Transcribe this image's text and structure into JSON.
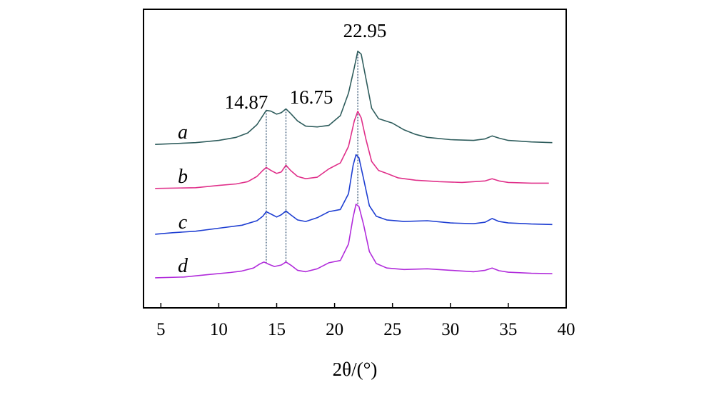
{
  "chart_data": {
    "type": "line",
    "title": "",
    "xlabel": "2θ/(°)",
    "ylabel": "",
    "xlim": [
      3.5,
      40
    ],
    "xticks": [
      5,
      10,
      15,
      20,
      25,
      30,
      35,
      40
    ],
    "grid": false,
    "legend": "none",
    "y_axis_ticks": false,
    "peak_annotations": [
      {
        "label": "14.87",
        "x": 14.87
      },
      {
        "label": "16.75",
        "x": 16.75
      },
      {
        "label": "22.95",
        "x": 22.95
      }
    ],
    "series": [
      {
        "name": "a",
        "color": "#2f5d5d",
        "offset": 3,
        "points": [
          [
            4.5,
            0.18
          ],
          [
            8,
            0.3
          ],
          [
            10,
            0.45
          ],
          [
            11.5,
            0.65
          ],
          [
            12.5,
            0.95
          ],
          [
            13.3,
            1.5
          ],
          [
            13.8,
            2.1
          ],
          [
            14.1,
            2.45
          ],
          [
            14.5,
            2.4
          ],
          [
            15,
            2.2
          ],
          [
            15.4,
            2.3
          ],
          [
            15.8,
            2.55
          ],
          [
            16.2,
            2.25
          ],
          [
            16.8,
            1.75
          ],
          [
            17.5,
            1.4
          ],
          [
            18.5,
            1.35
          ],
          [
            19.5,
            1.45
          ],
          [
            20.5,
            2.1
          ],
          [
            21.2,
            3.6
          ],
          [
            21.7,
            5.3
          ],
          [
            22.0,
            6.4
          ],
          [
            22.3,
            6.2
          ],
          [
            22.7,
            4.6
          ],
          [
            23.2,
            2.6
          ],
          [
            23.8,
            1.9
          ],
          [
            25,
            1.6
          ],
          [
            26,
            1.15
          ],
          [
            27,
            0.85
          ],
          [
            28,
            0.65
          ],
          [
            30,
            0.5
          ],
          [
            32,
            0.45
          ],
          [
            33,
            0.55
          ],
          [
            33.6,
            0.75
          ],
          [
            34.2,
            0.6
          ],
          [
            35,
            0.45
          ],
          [
            37,
            0.35
          ],
          [
            38.8,
            0.3
          ]
        ]
      },
      {
        "name": "b",
        "color": "#e0308a",
        "offset": 2,
        "points": [
          [
            4.5,
            0.2
          ],
          [
            8,
            0.25
          ],
          [
            10,
            0.4
          ],
          [
            11.5,
            0.5
          ],
          [
            12.5,
            0.65
          ],
          [
            13.3,
            1.0
          ],
          [
            13.8,
            1.4
          ],
          [
            14.1,
            1.6
          ],
          [
            14.5,
            1.4
          ],
          [
            15,
            1.2
          ],
          [
            15.4,
            1.3
          ],
          [
            15.8,
            1.75
          ],
          [
            16.2,
            1.4
          ],
          [
            16.8,
            1.0
          ],
          [
            17.5,
            0.85
          ],
          [
            18.5,
            0.95
          ],
          [
            19.5,
            1.5
          ],
          [
            20.5,
            1.9
          ],
          [
            21.2,
            3.0
          ],
          [
            21.7,
            4.7
          ],
          [
            22.0,
            5.35
          ],
          [
            22.3,
            4.9
          ],
          [
            22.7,
            3.5
          ],
          [
            23.2,
            2.0
          ],
          [
            23.8,
            1.4
          ],
          [
            24.5,
            1.2
          ],
          [
            25.5,
            0.9
          ],
          [
            27,
            0.75
          ],
          [
            29,
            0.65
          ],
          [
            31,
            0.6
          ],
          [
            33,
            0.7
          ],
          [
            33.6,
            0.85
          ],
          [
            34.2,
            0.7
          ],
          [
            35,
            0.6
          ],
          [
            37,
            0.55
          ],
          [
            38.5,
            0.55
          ]
        ]
      },
      {
        "name": "c",
        "color": "#1f3fd2",
        "offset": 1,
        "points": [
          [
            4.5,
            0.1
          ],
          [
            6,
            0.2
          ],
          [
            8,
            0.3
          ],
          [
            10,
            0.5
          ],
          [
            12,
            0.7
          ],
          [
            13.3,
            1.0
          ],
          [
            13.8,
            1.3
          ],
          [
            14.1,
            1.6
          ],
          [
            14.5,
            1.45
          ],
          [
            15,
            1.25
          ],
          [
            15.4,
            1.4
          ],
          [
            15.8,
            1.65
          ],
          [
            16.2,
            1.4
          ],
          [
            16.8,
            1.05
          ],
          [
            17.5,
            0.95
          ],
          [
            18.5,
            1.2
          ],
          [
            19.5,
            1.6
          ],
          [
            20.5,
            1.75
          ],
          [
            21.2,
            2.8
          ],
          [
            21.6,
            4.7
          ],
          [
            21.85,
            5.4
          ],
          [
            22.1,
            5.2
          ],
          [
            22.5,
            3.8
          ],
          [
            23.0,
            2.0
          ],
          [
            23.6,
            1.3
          ],
          [
            24.5,
            1.05
          ],
          [
            26,
            0.95
          ],
          [
            28,
            1.0
          ],
          [
            30,
            0.85
          ],
          [
            32,
            0.8
          ],
          [
            33,
            0.9
          ],
          [
            33.6,
            1.15
          ],
          [
            34.2,
            0.95
          ],
          [
            35,
            0.85
          ],
          [
            37,
            0.78
          ],
          [
            38.8,
            0.75
          ]
        ]
      },
      {
        "name": "d",
        "color": "#b12cdb",
        "offset": 0,
        "points": [
          [
            4.5,
            0.15
          ],
          [
            7,
            0.2
          ],
          [
            9,
            0.35
          ],
          [
            11,
            0.5
          ],
          [
            12,
            0.6
          ],
          [
            13,
            0.8
          ],
          [
            13.5,
            1.05
          ],
          [
            13.9,
            1.2
          ],
          [
            14.3,
            1.05
          ],
          [
            14.8,
            0.9
          ],
          [
            15.4,
            1.0
          ],
          [
            15.8,
            1.2
          ],
          [
            16.3,
            0.95
          ],
          [
            16.8,
            0.65
          ],
          [
            17.5,
            0.55
          ],
          [
            18.5,
            0.75
          ],
          [
            19.5,
            1.15
          ],
          [
            20.5,
            1.3
          ],
          [
            21.2,
            2.4
          ],
          [
            21.6,
            4.2
          ],
          [
            21.85,
            5.05
          ],
          [
            22.1,
            4.9
          ],
          [
            22.5,
            3.7
          ],
          [
            23.0,
            1.9
          ],
          [
            23.6,
            1.1
          ],
          [
            24.5,
            0.8
          ],
          [
            26,
            0.7
          ],
          [
            28,
            0.75
          ],
          [
            30,
            0.65
          ],
          [
            32,
            0.55
          ],
          [
            33,
            0.65
          ],
          [
            33.6,
            0.8
          ],
          [
            34.2,
            0.62
          ],
          [
            35,
            0.52
          ],
          [
            37,
            0.45
          ],
          [
            38.8,
            0.42
          ]
        ]
      }
    ]
  }
}
